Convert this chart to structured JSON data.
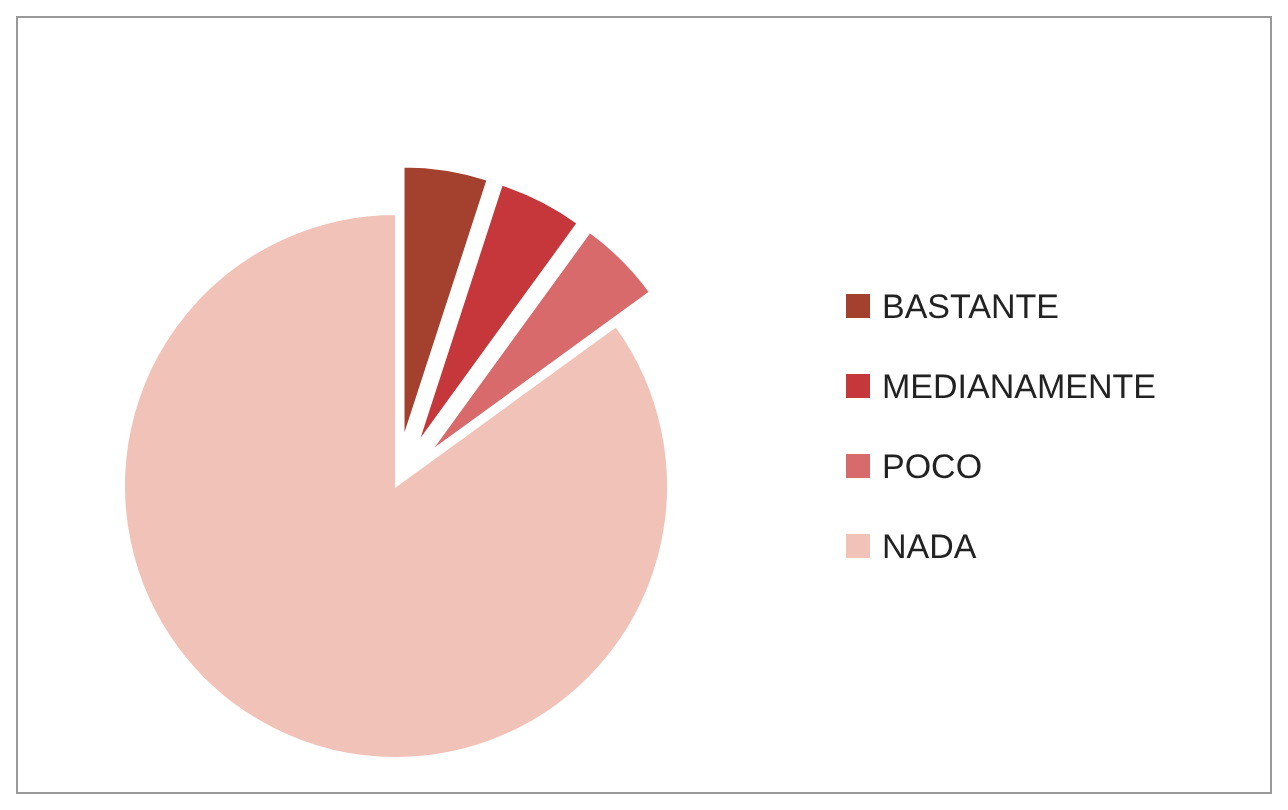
{
  "chart_data": {
    "type": "pie",
    "categories": [
      "BASTANTE",
      "MEDIANAMENTE",
      "POCO",
      "NADA"
    ],
    "values": [
      5,
      5,
      5,
      85
    ],
    "colors": [
      "#a3402e",
      "#c5373a",
      "#d96a6c",
      "#f0c2b8"
    ],
    "legend": "right"
  }
}
